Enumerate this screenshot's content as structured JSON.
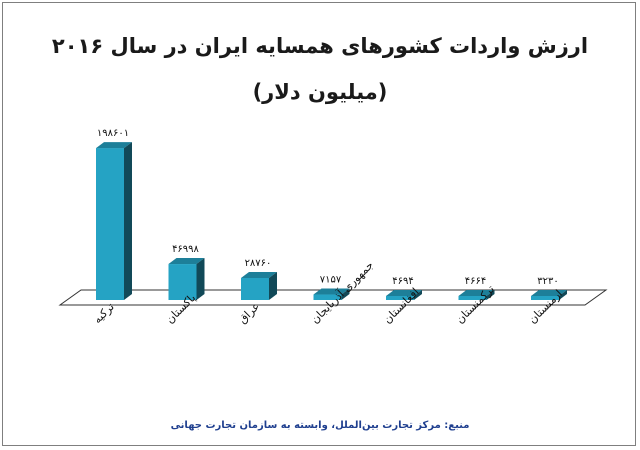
{
  "chart_data": {
    "type": "bar",
    "title": "ارزش واردات کشورهای همسایه ایران در سال ۲۰۱۶",
    "subtitle": "(میلیون دلار)",
    "categories": [
      "ترکیه",
      "پاکستان",
      "عراق",
      "جمهوری آذربایجان",
      "افغانستان",
      "ترکمنستان",
      "ارمنستان"
    ],
    "values": [
      198601,
      46998,
      28760,
      7157,
      4694,
      4664,
      3230
    ],
    "data_labels": [
      "۱۹۸۶۰۱",
      "۴۶۹۹۸",
      "۲۸۷۶۰",
      "۷۱۵۷",
      "۴۶۹۴",
      "۴۶۶۴",
      "۳۲۳۰"
    ],
    "ylim": [
      0,
      200000
    ],
    "bar_color": "#25a3c4",
    "grid": false,
    "legend": "none",
    "style": "3d-column"
  },
  "source": "منبع: مرکز تجارت بین‌الملل، وابسته به سازمان تجارت جهانی"
}
